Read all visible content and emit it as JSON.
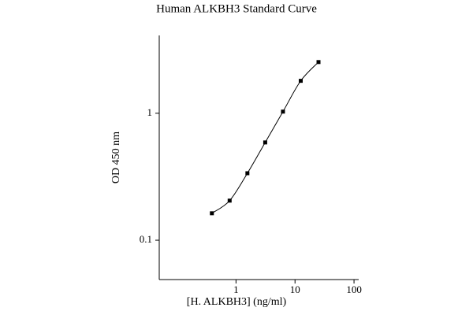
{
  "chart_data": {
    "type": "scatter",
    "title": "Human ALKBH3 Standard Curve",
    "x_label": "[H. ALKBH3] (ng/ml)",
    "y_label": "OD 450 nm",
    "x": [
      0.39,
      0.78,
      1.56,
      3.125,
      6.25,
      12.5,
      25
    ],
    "series": [
      {
        "values": [
          0.163,
          0.205,
          0.337,
          0.589,
          1.03,
          1.8,
          2.53
        ],
        "color": "#000000"
      }
    ],
    "xlim": [
      0.05,
      120
    ],
    "ylim": [
      0.049,
      4.1
    ],
    "xticks": [
      1,
      10,
      100
    ],
    "yticks": [
      0.1,
      1
    ],
    "log_x": true,
    "log_y": true,
    "grid": false
  }
}
